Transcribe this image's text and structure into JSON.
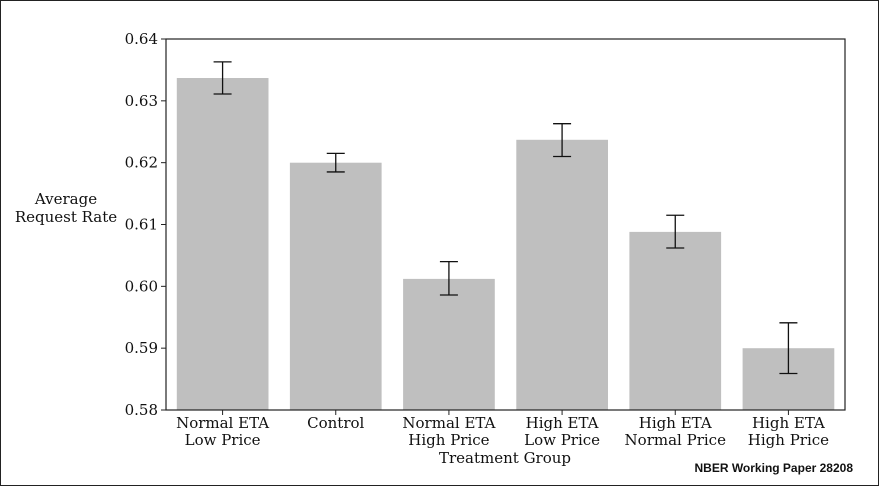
{
  "chart_data": {
    "type": "bar",
    "title": "",
    "xlabel": "Treatment Group",
    "ylabel": [
      "Average",
      "Request Rate"
    ],
    "ylim": [
      0.58,
      0.64
    ],
    "yticks": [
      "0.58",
      "0.59",
      "0.60",
      "0.61",
      "0.62",
      "0.63",
      "0.64"
    ],
    "categories": [
      [
        "Normal ETA",
        "Low Price"
      ],
      [
        "Control"
      ],
      [
        "Normal ETA",
        "High Price"
      ],
      [
        "High ETA",
        "Low Price"
      ],
      [
        "High ETA",
        "Normal Price"
      ],
      [
        "High ETA",
        "High Price"
      ]
    ],
    "values": [
      0.6337,
      0.62,
      0.6012,
      0.6237,
      0.6088,
      0.59
    ],
    "error_low": [
      0.6311,
      0.6185,
      0.5986,
      0.621,
      0.6062,
      0.5859
    ],
    "error_high": [
      0.6363,
      0.6215,
      0.604,
      0.6263,
      0.6115,
      0.5941
    ],
    "bar_color": "#bfbfbf",
    "grid": false,
    "legend": "none"
  },
  "watermark": "NBER Working Paper 28208"
}
